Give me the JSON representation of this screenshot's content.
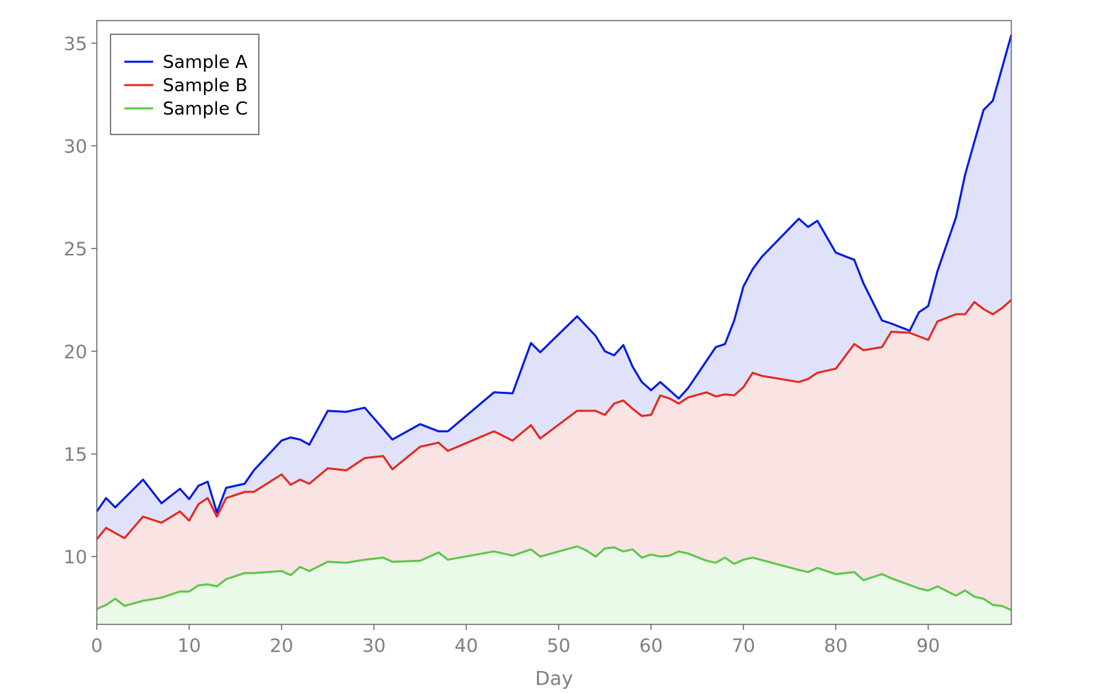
{
  "chart_data": {
    "type": "area",
    "xlabel": "Day",
    "ylabel": "",
    "xlim": [
      0,
      99
    ],
    "ylim": [
      6.7,
      36.1
    ],
    "xticks": [
      0,
      10,
      20,
      30,
      40,
      50,
      60,
      70,
      80,
      90
    ],
    "yticks": [
      10,
      15,
      20,
      25,
      30,
      35
    ],
    "baseline": 6.7,
    "grid": false,
    "legend_position": "top-left",
    "series": [
      {
        "name": "Sample A",
        "color": "#0019e6",
        "fill": "#e0e2fa",
        "points": [
          [
            0,
            12.2
          ],
          [
            1,
            12.85
          ],
          [
            2,
            12.4
          ],
          [
            5,
            13.75
          ],
          [
            7,
            12.6
          ],
          [
            9,
            13.3
          ],
          [
            10,
            12.8
          ],
          [
            11,
            13.45
          ],
          [
            12,
            13.65
          ],
          [
            13,
            12.15
          ],
          [
            14,
            13.35
          ],
          [
            16,
            13.55
          ],
          [
            17,
            14.2
          ],
          [
            20,
            15.65
          ],
          [
            21,
            15.8
          ],
          [
            22,
            15.7
          ],
          [
            23,
            15.45
          ],
          [
            25,
            17.1
          ],
          [
            27,
            17.05
          ],
          [
            29,
            17.25
          ],
          [
            32,
            15.7
          ],
          [
            35,
            16.45
          ],
          [
            37,
            16.1
          ],
          [
            38,
            16.1
          ],
          [
            43,
            18.0
          ],
          [
            45,
            17.95
          ],
          [
            47,
            20.4
          ],
          [
            48,
            19.95
          ],
          [
            52,
            21.7
          ],
          [
            54,
            20.75
          ],
          [
            55,
            20.0
          ],
          [
            56,
            19.8
          ],
          [
            57,
            20.3
          ],
          [
            58,
            19.25
          ],
          [
            59,
            18.5
          ],
          [
            60,
            18.1
          ],
          [
            61,
            18.5
          ],
          [
            62,
            18.1
          ],
          [
            63,
            17.7
          ],
          [
            64,
            18.2
          ],
          [
            67,
            20.2
          ],
          [
            68,
            20.35
          ],
          [
            69,
            21.5
          ],
          [
            70,
            23.15
          ],
          [
            71,
            24.0
          ],
          [
            72,
            24.6
          ],
          [
            76,
            26.45
          ],
          [
            77,
            26.05
          ],
          [
            78,
            26.35
          ],
          [
            80,
            24.8
          ],
          [
            82,
            24.45
          ],
          [
            83,
            23.3
          ],
          [
            85,
            21.5
          ],
          [
            86,
            21.35
          ],
          [
            88,
            21.0
          ],
          [
            89,
            21.9
          ],
          [
            90,
            22.2
          ],
          [
            91,
            23.9
          ],
          [
            93,
            26.5
          ],
          [
            94,
            28.6
          ],
          [
            95,
            30.2
          ],
          [
            96,
            31.75
          ],
          [
            97,
            32.2
          ],
          [
            99,
            35.4
          ]
        ]
      },
      {
        "name": "Sample B",
        "color": "#e6281e",
        "fill": "#fae3e3",
        "points": [
          [
            0,
            10.85
          ],
          [
            1,
            11.4
          ],
          [
            2,
            11.15
          ],
          [
            3,
            10.9
          ],
          [
            5,
            11.95
          ],
          [
            7,
            11.65
          ],
          [
            9,
            12.2
          ],
          [
            10,
            11.75
          ],
          [
            11,
            12.55
          ],
          [
            12,
            12.85
          ],
          [
            13,
            11.95
          ],
          [
            14,
            12.85
          ],
          [
            16,
            13.15
          ],
          [
            17,
            13.15
          ],
          [
            20,
            14.0
          ],
          [
            21,
            13.5
          ],
          [
            22,
            13.75
          ],
          [
            23,
            13.55
          ],
          [
            25,
            14.3
          ],
          [
            27,
            14.2
          ],
          [
            29,
            14.8
          ],
          [
            31,
            14.9
          ],
          [
            32,
            14.25
          ],
          [
            35,
            15.35
          ],
          [
            37,
            15.55
          ],
          [
            38,
            15.15
          ],
          [
            43,
            16.1
          ],
          [
            45,
            15.65
          ],
          [
            47,
            16.4
          ],
          [
            48,
            15.75
          ],
          [
            52,
            17.1
          ],
          [
            53,
            17.1
          ],
          [
            54,
            17.1
          ],
          [
            55,
            16.9
          ],
          [
            56,
            17.45
          ],
          [
            57,
            17.6
          ],
          [
            58,
            17.2
          ],
          [
            59,
            16.85
          ],
          [
            60,
            16.9
          ],
          [
            61,
            17.85
          ],
          [
            62,
            17.7
          ],
          [
            63,
            17.45
          ],
          [
            64,
            17.75
          ],
          [
            66,
            18.0
          ],
          [
            67,
            17.8
          ],
          [
            68,
            17.9
          ],
          [
            69,
            17.85
          ],
          [
            70,
            18.25
          ],
          [
            71,
            18.95
          ],
          [
            72,
            18.8
          ],
          [
            76,
            18.5
          ],
          [
            77,
            18.65
          ],
          [
            78,
            18.95
          ],
          [
            80,
            19.15
          ],
          [
            82,
            20.35
          ],
          [
            83,
            20.05
          ],
          [
            85,
            20.2
          ],
          [
            86,
            20.95
          ],
          [
            88,
            20.9
          ],
          [
            90,
            20.55
          ],
          [
            91,
            21.45
          ],
          [
            93,
            21.8
          ],
          [
            94,
            21.8
          ],
          [
            95,
            22.4
          ],
          [
            96,
            22.05
          ],
          [
            97,
            21.8
          ],
          [
            98,
            22.1
          ],
          [
            99,
            22.5
          ]
        ]
      },
      {
        "name": "Sample C",
        "color": "#5ac84b",
        "fill": "#ebfae8",
        "points": [
          [
            0,
            7.45
          ],
          [
            1,
            7.65
          ],
          [
            2,
            7.95
          ],
          [
            3,
            7.6
          ],
          [
            5,
            7.85
          ],
          [
            7,
            8.0
          ],
          [
            9,
            8.3
          ],
          [
            10,
            8.3
          ],
          [
            11,
            8.6
          ],
          [
            12,
            8.65
          ],
          [
            13,
            8.55
          ],
          [
            14,
            8.9
          ],
          [
            16,
            9.2
          ],
          [
            17,
            9.2
          ],
          [
            20,
            9.3
          ],
          [
            21,
            9.1
          ],
          [
            22,
            9.5
          ],
          [
            23,
            9.3
          ],
          [
            25,
            9.75
          ],
          [
            27,
            9.7
          ],
          [
            29,
            9.85
          ],
          [
            31,
            9.95
          ],
          [
            32,
            9.75
          ],
          [
            35,
            9.8
          ],
          [
            37,
            10.2
          ],
          [
            38,
            9.85
          ],
          [
            43,
            10.25
          ],
          [
            45,
            10.05
          ],
          [
            47,
            10.35
          ],
          [
            48,
            10.0
          ],
          [
            52,
            10.5
          ],
          [
            53,
            10.3
          ],
          [
            54,
            10.0
          ],
          [
            55,
            10.4
          ],
          [
            56,
            10.45
          ],
          [
            57,
            10.25
          ],
          [
            58,
            10.35
          ],
          [
            59,
            9.95
          ],
          [
            60,
            10.1
          ],
          [
            61,
            10.0
          ],
          [
            62,
            10.05
          ],
          [
            63,
            10.25
          ],
          [
            64,
            10.15
          ],
          [
            66,
            9.8
          ],
          [
            67,
            9.7
          ],
          [
            68,
            9.95
          ],
          [
            69,
            9.65
          ],
          [
            70,
            9.85
          ],
          [
            71,
            9.95
          ],
          [
            76,
            9.35
          ],
          [
            77,
            9.25
          ],
          [
            78,
            9.45
          ],
          [
            80,
            9.15
          ],
          [
            82,
            9.25
          ],
          [
            83,
            8.85
          ],
          [
            85,
            9.15
          ],
          [
            86,
            8.95
          ],
          [
            89,
            8.45
          ],
          [
            90,
            8.35
          ],
          [
            91,
            8.55
          ],
          [
            93,
            8.1
          ],
          [
            94,
            8.35
          ],
          [
            95,
            8.05
          ],
          [
            96,
            7.95
          ],
          [
            97,
            7.65
          ],
          [
            98,
            7.6
          ],
          [
            99,
            7.4
          ]
        ]
      }
    ]
  }
}
